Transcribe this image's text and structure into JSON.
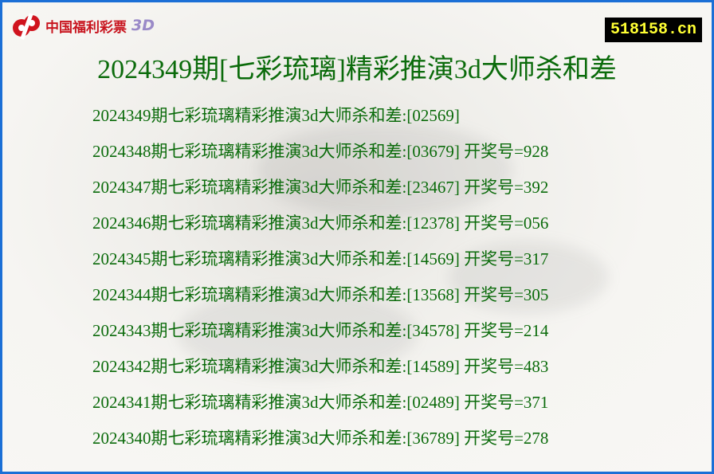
{
  "logo": {
    "text": "中国福利彩票",
    "suffix": "3D"
  },
  "site_badge": "518158.cn",
  "title": "2024349期[七彩琉璃]精彩推演3d大师杀和差",
  "rows": [
    {
      "text": "2024349期七彩琉璃精彩推演3d大师杀和差:[02569]"
    },
    {
      "text": "2024348期七彩琉璃精彩推演3d大师杀和差:[03679] 开奖号=928"
    },
    {
      "text": "2024347期七彩琉璃精彩推演3d大师杀和差:[23467] 开奖号=392"
    },
    {
      "text": "2024346期七彩琉璃精彩推演3d大师杀和差:[12378] 开奖号=056"
    },
    {
      "text": "2024345期七彩琉璃精彩推演3d大师杀和差:[14569] 开奖号=317"
    },
    {
      "text": "2024344期七彩琉璃精彩推演3d大师杀和差:[13568] 开奖号=305"
    },
    {
      "text": "2024343期七彩琉璃精彩推演3d大师杀和差:[34578] 开奖号=214"
    },
    {
      "text": "2024342期七彩琉璃精彩推演3d大师杀和差:[14589] 开奖号=483"
    },
    {
      "text": "2024341期七彩琉璃精彩推演3d大师杀和差:[02489] 开奖号=371"
    },
    {
      "text": "2024340期七彩琉璃精彩推演3d大师杀和差:[36789] 开奖号=278"
    }
  ],
  "colors": {
    "border": "#1b6fd6",
    "text": "#0b6b0b",
    "badge_text": "#ffff33",
    "logo_red": "#c8141e"
  }
}
